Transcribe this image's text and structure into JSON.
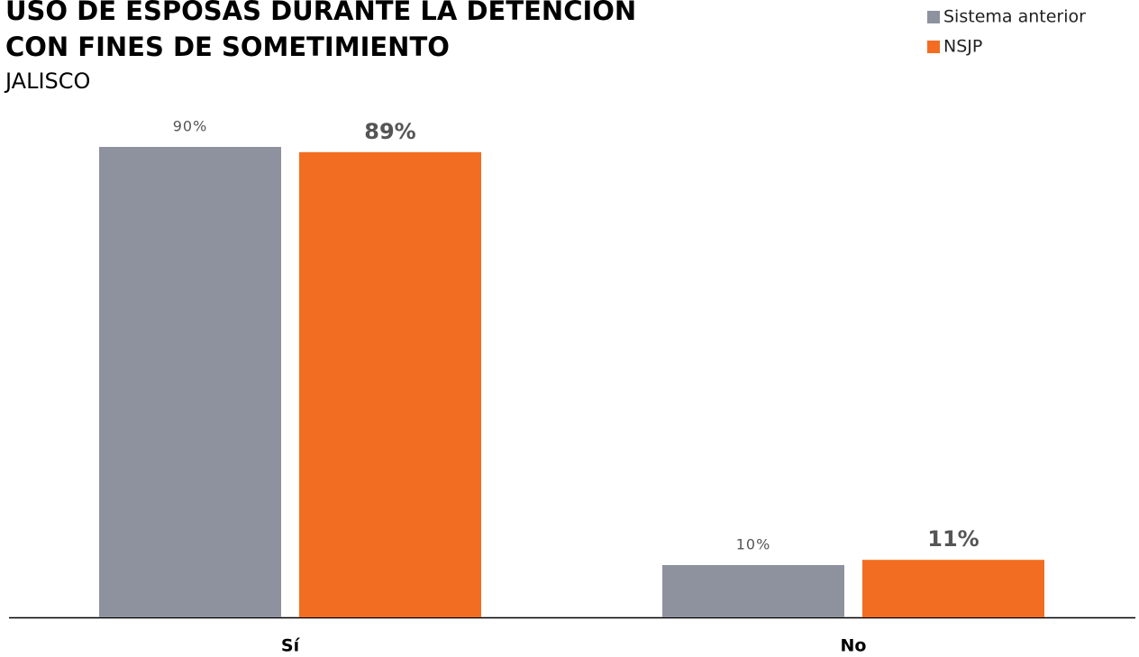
{
  "chart_data": {
    "type": "bar",
    "title": [
      "USO DE ESPOSAS DURANTE LA DETENCIÓN",
      "CON FINES DE SOMETIMIENTO"
    ],
    "subtitle": "JALISCO",
    "categories": [
      "Sí",
      "No"
    ],
    "series": [
      {
        "name": "Sistema anterior",
        "color": "#8e929e",
        "values": [
          90,
          10
        ],
        "value_labels": [
          "90%",
          "10%"
        ]
      },
      {
        "name": "NSJP",
        "color": "#f26d21",
        "values": [
          89,
          11
        ],
        "value_labels": [
          "89%",
          "11%"
        ]
      }
    ],
    "legend": "top-right"
  }
}
